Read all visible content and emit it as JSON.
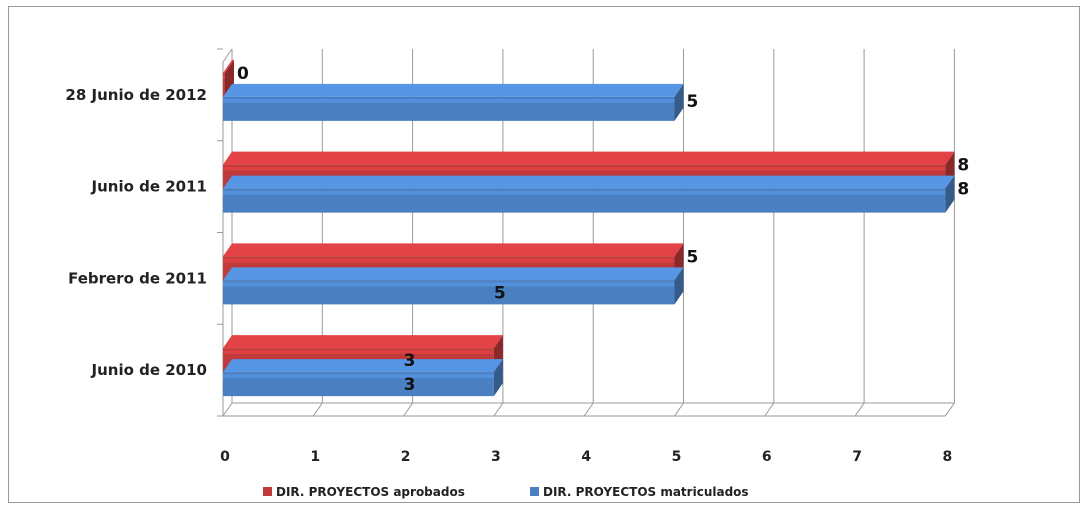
{
  "chart_data": {
    "type": "bar",
    "orientation": "horizontal",
    "style": "3d",
    "categories": [
      "Junio de 2010",
      "Febrero de 2011",
      "Junio de 2011",
      "28 Junio de 2012"
    ],
    "series": [
      {
        "name": "DIR. PROYECTOS aprobados",
        "values": [
          3,
          5,
          8,
          0
        ],
        "labels": [
          "3",
          "5",
          "8",
          "0"
        ],
        "color": "#c0393b"
      },
      {
        "name": "DIR. PROYECTOS matriculados",
        "values": [
          3,
          5,
          8,
          5
        ],
        "labels": [
          "3",
          "5",
          "8",
          "5"
        ],
        "color": "#4a7fc1"
      }
    ],
    "x_ticks": [
      {
        "label": "0",
        "value": 0
      },
      {
        "label": "1",
        "value": 1
      },
      {
        "label": "2",
        "value": 2
      },
      {
        "label": "3",
        "value": 3
      },
      {
        "label": "4",
        "value": 4
      },
      {
        "label": "5",
        "value": 5
      },
      {
        "label": "6",
        "value": 6
      },
      {
        "label": "7",
        "value": 7
      },
      {
        "label": "8",
        "value": 8
      }
    ],
    "xlim": [
      0,
      8
    ],
    "grid": true,
    "legend_position": "bottom"
  },
  "colors": {
    "aprobados": "#c0393b",
    "matriculados": "#4a7fc1",
    "grid": "#9a9a9a"
  }
}
